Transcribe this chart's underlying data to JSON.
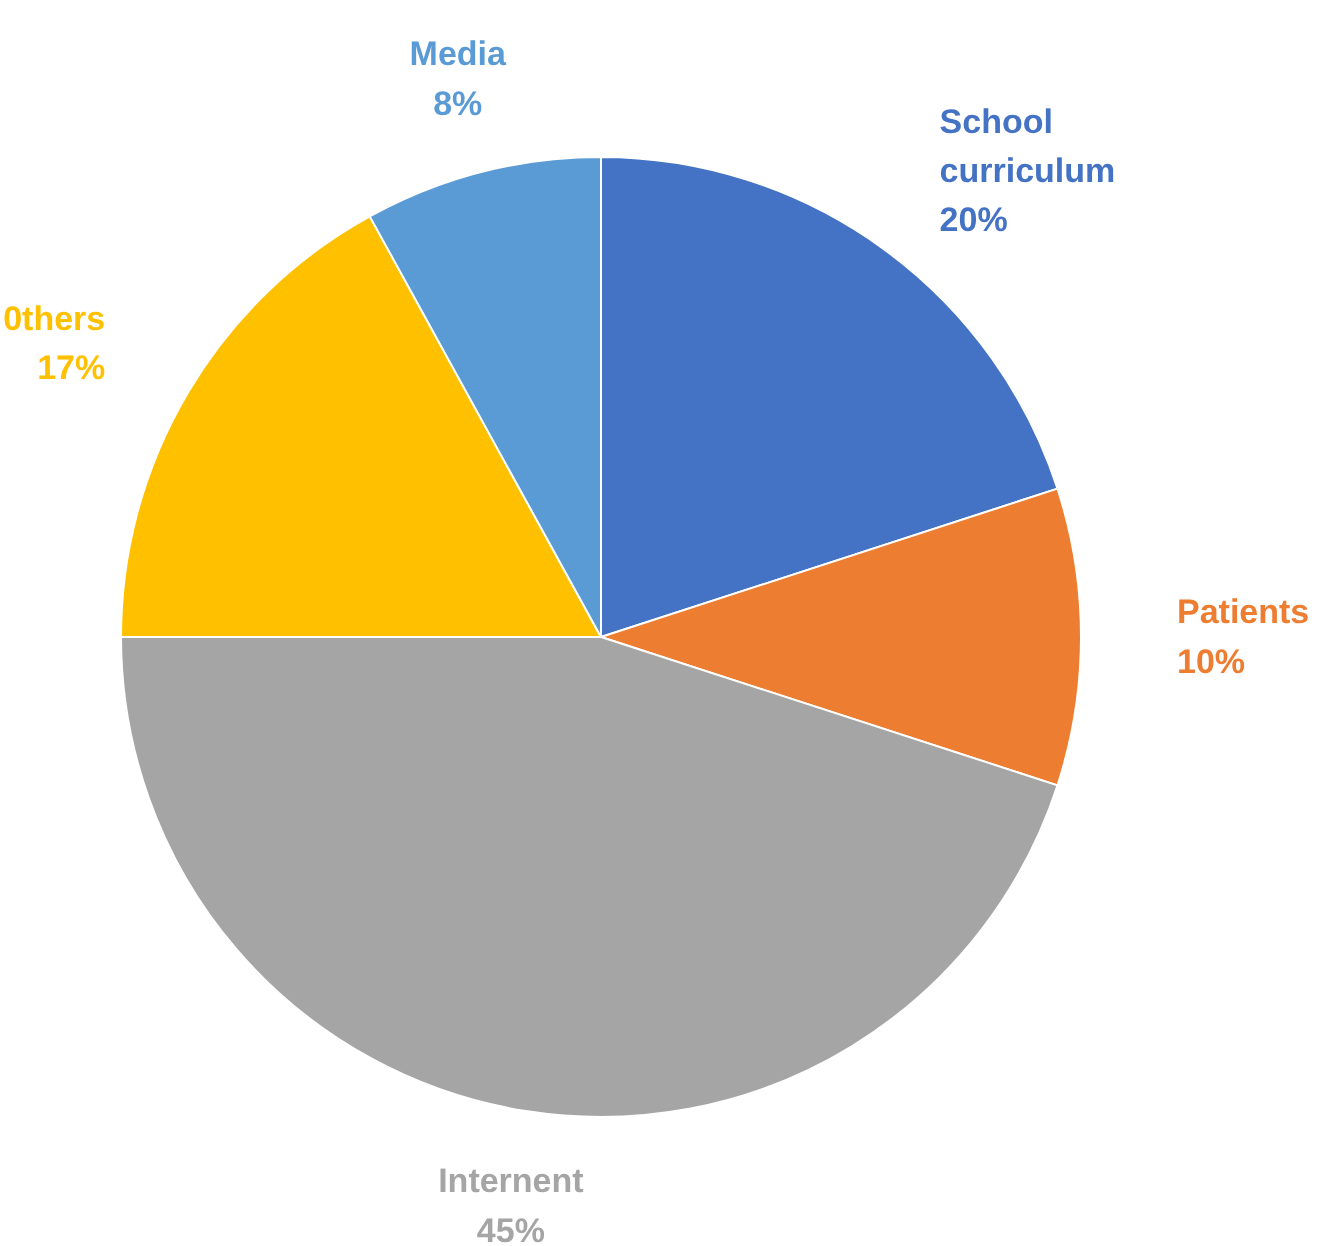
{
  "chart_data": {
    "type": "pie",
    "categories": [
      "School curriculum",
      "Patients",
      "Internent",
      "0thers",
      "Media"
    ],
    "values": [
      20,
      10,
      45,
      17,
      8
    ],
    "value_labels": [
      "20%",
      "10%",
      "45%",
      "17%",
      "8%"
    ],
    "colors": [
      "#4472c4",
      "#ed7d31",
      "#a5a5a5",
      "#ffc000",
      "#5b9bd5"
    ],
    "legend": false
  }
}
